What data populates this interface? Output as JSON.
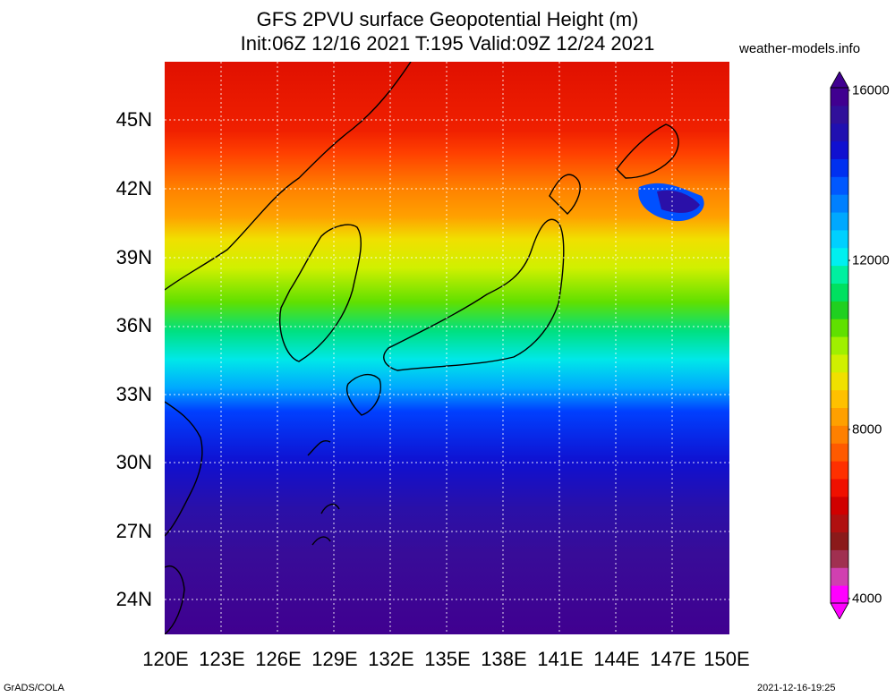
{
  "title_line1": "GFS 2PVU surface Geopotential Height (m)",
  "title_line2": "Init:06Z 12/16 2021 T:195 Valid:09Z 12/24 2021",
  "site": "weather-models.info",
  "lat_labels": [
    "45N",
    "42N",
    "39N",
    "36N",
    "33N",
    "30N",
    "27N",
    "24N"
  ],
  "lon_labels": [
    "120E",
    "123E",
    "126E",
    "129E",
    "132E",
    "135E",
    "138E",
    "141E",
    "144E",
    "147E",
    "150E"
  ],
  "colorbar": {
    "labels": [
      "16000",
      "12000",
      "8000",
      "4000"
    ],
    "colors": [
      "#ff00ff",
      "#d040b0",
      "#a03050",
      "#8b1a1a",
      "#b01010",
      "#d00000",
      "#f01000",
      "#ff3000",
      "#ff5a00",
      "#ff8000",
      "#ffa000",
      "#ffc000",
      "#f0e000",
      "#d0f000",
      "#a0f000",
      "#60e000",
      "#20d020",
      "#00e060",
      "#00f0a0",
      "#00f0f0",
      "#00d0ff",
      "#00a8ff",
      "#0080ff",
      "#0058ff",
      "#0030f0",
      "#1010d0",
      "#2010b0",
      "#30109a",
      "#400090"
    ]
  },
  "footer_left": "GrADS/COLA",
  "footer_right": "2021-12-16-19:25"
}
